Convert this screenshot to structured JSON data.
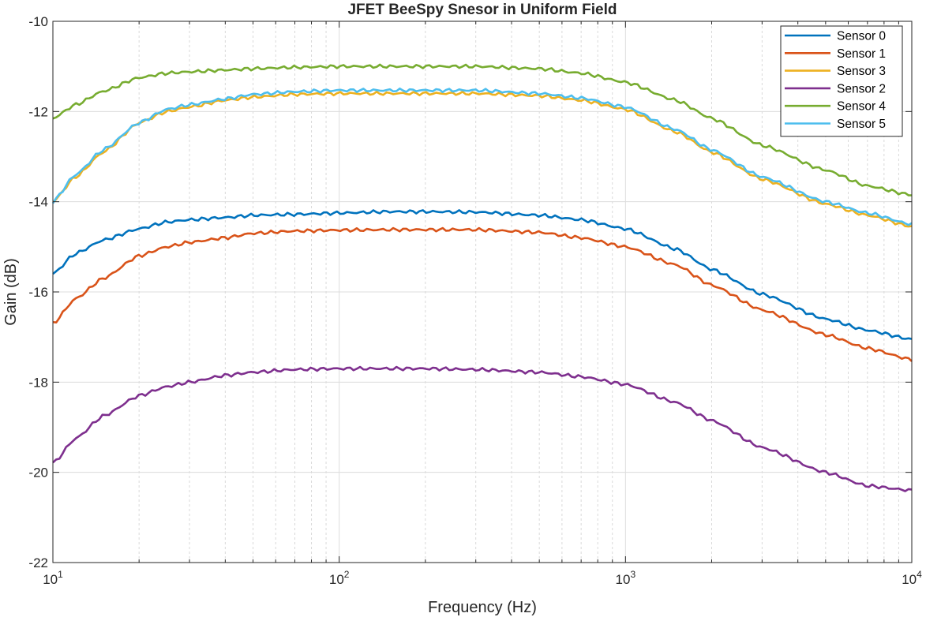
{
  "chart_data": {
    "type": "line",
    "title": "JFET BeeSpy Snesor in Uniform Field",
    "xlabel": "Frequency (Hz)",
    "ylabel": "Gain (dB)",
    "xscale": "log",
    "xlim": [
      10,
      10000
    ],
    "ylim": [
      -22,
      -10
    ],
    "x_ticks": [
      10,
      100,
      1000,
      10000
    ],
    "x_tick_labels": [
      {
        "base": "10",
        "exp": "1"
      },
      {
        "base": "10",
        "exp": "2"
      },
      {
        "base": "10",
        "exp": "3"
      },
      {
        "base": "10",
        "exp": "4"
      }
    ],
    "y_ticks": [
      -22,
      -20,
      -18,
      -16,
      -14,
      -12,
      -10
    ],
    "y_tick_labels": [
      "-22",
      "-20",
      "-18",
      "-16",
      "-14",
      "-12",
      "-10"
    ],
    "grid": true,
    "minor_grid": true,
    "legend_position": "top-right",
    "x": [
      10,
      12,
      15,
      20,
      25,
      30,
      40,
      50,
      70,
      100,
      150,
      200,
      300,
      500,
      700,
      1000,
      1500,
      2000,
      3000,
      5000,
      7000,
      10000
    ],
    "series": [
      {
        "name": "Sensor 0",
        "color": "#0072BD",
        "values": [
          -15.6,
          -15.15,
          -14.85,
          -14.6,
          -14.45,
          -14.4,
          -14.35,
          -14.3,
          -14.28,
          -14.25,
          -14.22,
          -14.22,
          -14.23,
          -14.3,
          -14.4,
          -14.6,
          -15.05,
          -15.5,
          -16.05,
          -16.6,
          -16.85,
          -17.05
        ]
      },
      {
        "name": "Sensor 1",
        "color": "#D95319",
        "values": [
          -16.7,
          -16.15,
          -15.7,
          -15.2,
          -15.0,
          -14.9,
          -14.8,
          -14.7,
          -14.65,
          -14.63,
          -14.62,
          -14.62,
          -14.62,
          -14.68,
          -14.8,
          -15.0,
          -15.4,
          -15.85,
          -16.4,
          -16.95,
          -17.25,
          -17.5
        ]
      },
      {
        "name": "Sensor 3",
        "color": "#EDB120",
        "values": [
          -14.0,
          -13.45,
          -12.9,
          -12.25,
          -12.0,
          -11.9,
          -11.75,
          -11.68,
          -11.62,
          -11.6,
          -11.6,
          -11.6,
          -11.6,
          -11.65,
          -11.75,
          -11.95,
          -12.45,
          -12.9,
          -13.5,
          -14.05,
          -14.3,
          -14.55
        ]
      },
      {
        "name": "Sensor 2",
        "color": "#7E2F8E",
        "values": [
          -19.8,
          -19.25,
          -18.75,
          -18.3,
          -18.1,
          -18.0,
          -17.85,
          -17.78,
          -17.72,
          -17.7,
          -17.7,
          -17.7,
          -17.72,
          -17.78,
          -17.88,
          -18.05,
          -18.45,
          -18.85,
          -19.45,
          -20.0,
          -20.3,
          -20.4
        ]
      },
      {
        "name": "Sensor 4",
        "color": "#77AC30",
        "values": [
          -12.15,
          -11.85,
          -11.55,
          -11.25,
          -11.15,
          -11.12,
          -11.08,
          -11.05,
          -11.02,
          -11.0,
          -11.0,
          -11.0,
          -11.0,
          -11.05,
          -11.15,
          -11.35,
          -11.75,
          -12.15,
          -12.75,
          -13.3,
          -13.65,
          -13.85
        ]
      },
      {
        "name": "Sensor 5",
        "color": "#4DBEEE",
        "values": [
          -14.0,
          -13.4,
          -12.85,
          -12.25,
          -11.95,
          -11.85,
          -11.72,
          -11.62,
          -11.56,
          -11.53,
          -11.53,
          -11.53,
          -11.53,
          -11.6,
          -11.7,
          -11.9,
          -12.4,
          -12.85,
          -13.45,
          -14.0,
          -14.25,
          -14.5
        ]
      }
    ]
  }
}
